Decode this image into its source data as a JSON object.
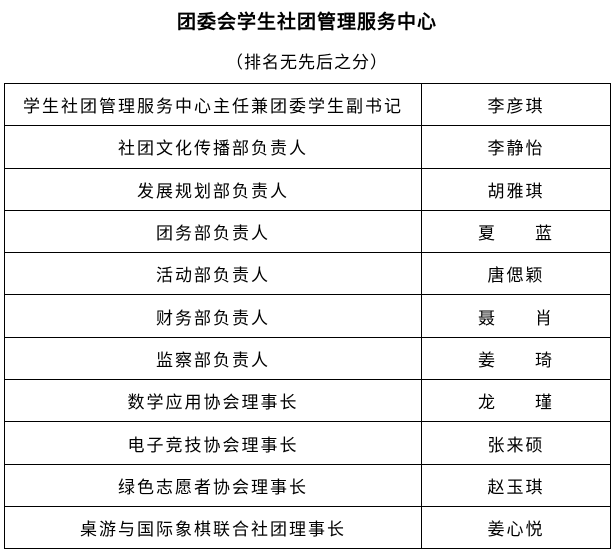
{
  "title": "团委会学生社团管理服务中心",
  "subtitle": "（排名无先后之分）",
  "rows": [
    {
      "role": "学生社团管理服务中心主任兼团委学生副书记",
      "name": "李彦琪"
    },
    {
      "role": "社团文化传播部负责人",
      "name": "李静怡"
    },
    {
      "role": "发展规划部负责人",
      "name": "胡雅琪"
    },
    {
      "role": "团务部负责人",
      "name": "夏　　蓝"
    },
    {
      "role": "活动部负责人",
      "name": "唐偲颖"
    },
    {
      "role": "财务部负责人",
      "name": "聂　　肖"
    },
    {
      "role": "监察部负责人",
      "name": "姜　　琦"
    },
    {
      "role": "数学应用协会理事长",
      "name": "龙　　瑾"
    },
    {
      "role": "电子竞技协会理事长",
      "name": "张来硕"
    },
    {
      "role": "绿色志愿者协会理事长",
      "name": "赵玉琪"
    },
    {
      "role": "桌游与国际象棋联合社团理事长",
      "name": "姜心悦"
    }
  ]
}
